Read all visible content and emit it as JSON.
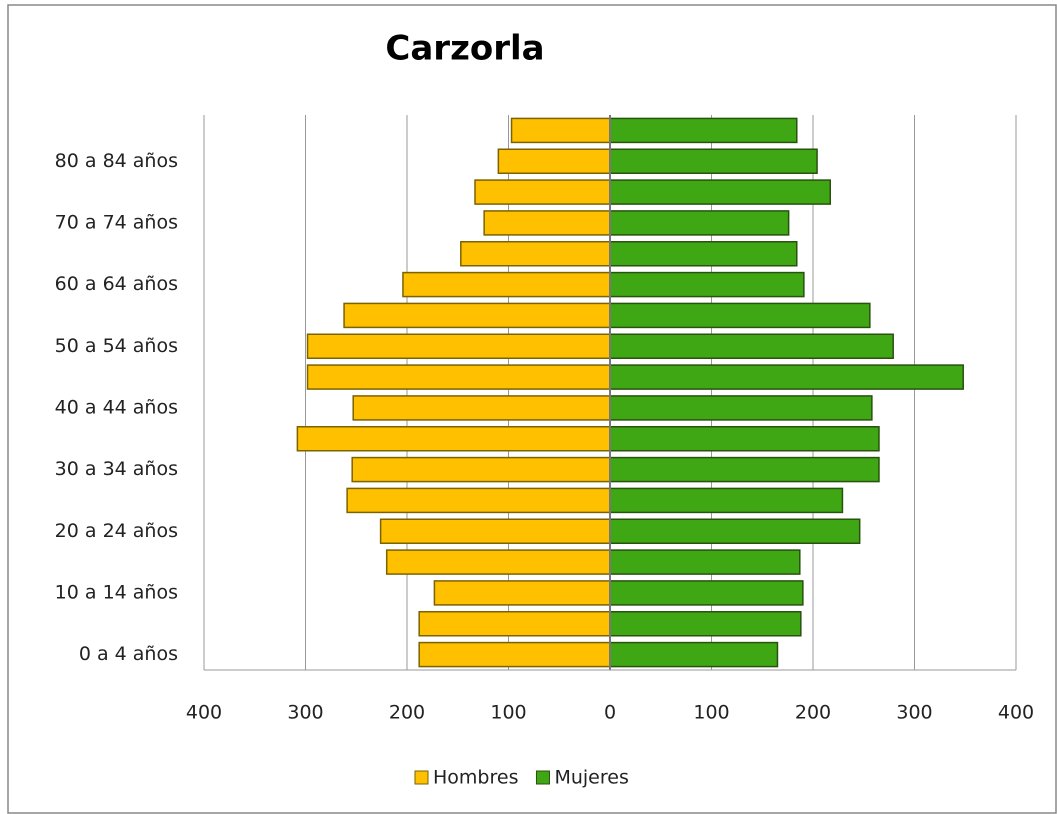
{
  "chart_data": {
    "type": "bar",
    "orientation": "horizontal",
    "stacked": true,
    "title": "Carzorla",
    "categories": [
      "0 a 4 años",
      null,
      "10 a 14 años",
      null,
      "20 a 24 años",
      null,
      "30 a 34 años",
      null,
      "40 a 44 años",
      null,
      "50 a 54 años",
      null,
      "60 a 64 años",
      null,
      "70 a 74 años",
      null,
      "80 a 84 años",
      null
    ],
    "series": [
      {
        "name": "Hombres",
        "color": "#ffc000",
        "values": [
          -188,
          -188,
          -173,
          -220,
          -226,
          -259,
          -254,
          -308,
          -253,
          -298,
          -298,
          -262,
          -204,
          -147,
          -124,
          -133,
          -110,
          -97
        ]
      },
      {
        "name": "Mujeres",
        "color": "#3fa614",
        "values": [
          165,
          188,
          190,
          187,
          246,
          229,
          265,
          265,
          258,
          348,
          279,
          256,
          191,
          184,
          176,
          217,
          204,
          184
        ]
      }
    ],
    "xlim": [
      -400,
      400
    ],
    "xticks": [
      {
        "value": -400,
        "label": "400"
      },
      {
        "value": -300,
        "label": "300"
      },
      {
        "value": -200,
        "label": "200"
      },
      {
        "value": -100,
        "label": "100"
      },
      0,
      100,
      200,
      300,
      400
    ],
    "grid": true,
    "legend": "bottom"
  }
}
